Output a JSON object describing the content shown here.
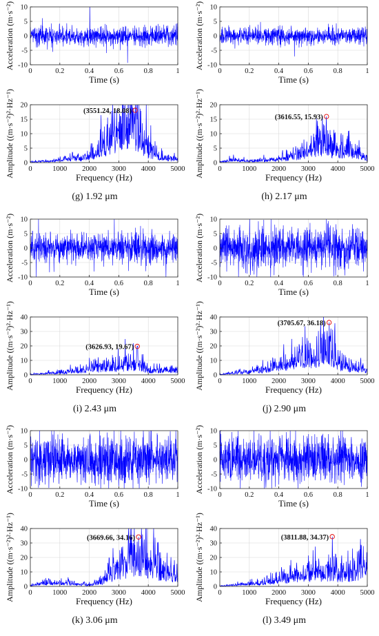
{
  "figure": {
    "time_xlabel": "Time (s)",
    "time_ylabel": "Acceleration (m·s⁻²)",
    "freq_xlabel": "Frequency (Hz)",
    "freq_ylabel": "Amplitude ((m·s⁻²)²·Hz⁻¹)"
  },
  "chart_data": [
    {
      "id": "g",
      "caption": "(g) 1.92 μm",
      "time": {
        "type": "line",
        "xlabel": "Time (s)",
        "ylabel": "Acceleration (m·s⁻²)",
        "xlim": [
          0,
          1
        ],
        "ylim": [
          -10,
          10
        ],
        "xticks": [
          "0",
          "0.2",
          "0.4",
          "0.6",
          "0.8",
          "1"
        ],
        "yticks": [
          "-10",
          "-5",
          "0",
          "5",
          "10"
        ],
        "grid": true,
        "amplitude": 3.5,
        "color": "#0000ff"
      },
      "spectrum": {
        "type": "line",
        "xlabel": "Frequency (Hz)",
        "ylabel": "Amplitude ((m·s⁻²)²·Hz⁻¹)",
        "xlim": [
          0,
          5000
        ],
        "ylim": [
          0,
          20
        ],
        "xticks": [
          "0",
          "1000",
          "2000",
          "3000",
          "4000",
          "5000"
        ],
        "yticks": [
          "0",
          "5",
          "10",
          "15",
          "20"
        ],
        "grid": true,
        "color": "#0000ff",
        "envelope": [
          [
            0,
            0.2
          ],
          [
            800,
            0.5
          ],
          [
            1300,
            1.2
          ],
          [
            1800,
            1.5
          ],
          [
            2200,
            3
          ],
          [
            2600,
            6
          ],
          [
            3000,
            9
          ],
          [
            3300,
            11
          ],
          [
            3500,
            12
          ],
          [
            3700,
            9
          ],
          [
            4000,
            4
          ],
          [
            4500,
            1.5
          ],
          [
            5000,
            1
          ]
        ],
        "peak": {
          "x": 3551.24,
          "y": 18.08,
          "label": "(3551.24, 18.08)"
        }
      }
    },
    {
      "id": "h",
      "caption": "(h) 2.17 μm",
      "time": {
        "type": "line",
        "xlabel": "Time (s)",
        "ylabel": "Acceleration (m·s⁻²)",
        "xlim": [
          0,
          1
        ],
        "ylim": [
          -10,
          10
        ],
        "xticks": [
          "0",
          "0.2",
          "0.4",
          "0.6",
          "0.8",
          "1"
        ],
        "yticks": [
          "-10",
          "-5",
          "0",
          "5",
          "10"
        ],
        "grid": true,
        "amplitude": 3.2,
        "color": "#0000ff"
      },
      "spectrum": {
        "type": "line",
        "xlabel": "Frequency (Hz)",
        "ylabel": "Amplitude ((m·s⁻²)²·Hz⁻¹)",
        "xlim": [
          0,
          5000
        ],
        "ylim": [
          0,
          20
        ],
        "xticks": [
          "0",
          "1000",
          "2000",
          "3000",
          "4000",
          "5000"
        ],
        "yticks": [
          "0",
          "5",
          "10",
          "15",
          "20"
        ],
        "grid": true,
        "color": "#0000ff",
        "envelope": [
          [
            0,
            0.2
          ],
          [
            500,
            1
          ],
          [
            1000,
            0.4
          ],
          [
            2000,
            1
          ],
          [
            2500,
            2
          ],
          [
            3000,
            3.5
          ],
          [
            3400,
            6
          ],
          [
            3600,
            6
          ],
          [
            3900,
            4
          ],
          [
            4300,
            4
          ],
          [
            4600,
            3
          ],
          [
            5000,
            1
          ]
        ],
        "peak": {
          "x": 3616.55,
          "y": 15.93,
          "label": "(3616.55, 15.93)"
        }
      }
    },
    {
      "id": "i",
      "caption": "(i) 2.43 μm",
      "time": {
        "type": "line",
        "xlabel": "Time (s)",
        "ylabel": "Acceleration (m·s⁻²)",
        "xlim": [
          0,
          1
        ],
        "ylim": [
          -10,
          10
        ],
        "xticks": [
          "0",
          "0.2",
          "0.4",
          "0.6",
          "0.8",
          "1"
        ],
        "yticks": [
          "-10",
          "-5",
          "0",
          "5",
          "10"
        ],
        "grid": true,
        "amplitude": 5.5,
        "color": "#0000ff"
      },
      "spectrum": {
        "type": "line",
        "xlabel": "Frequency (Hz)",
        "ylabel": "Amplitude ((m·s⁻²)²·Hz⁻¹)",
        "xlim": [
          0,
          5000
        ],
        "ylim": [
          0,
          40
        ],
        "xticks": [
          "0",
          "1000",
          "2000",
          "3000",
          "4000",
          "5000"
        ],
        "yticks": [
          "0",
          "10",
          "20",
          "30",
          "40"
        ],
        "grid": true,
        "color": "#0000ff",
        "envelope": [
          [
            0,
            0.3
          ],
          [
            1000,
            1.5
          ],
          [
            1500,
            2.5
          ],
          [
            2000,
            3.5
          ],
          [
            2500,
            5
          ],
          [
            3000,
            6
          ],
          [
            3400,
            7
          ],
          [
            3700,
            8
          ],
          [
            4000,
            3
          ],
          [
            4500,
            3
          ],
          [
            5000,
            3
          ]
        ],
        "peak": {
          "x": 3626.93,
          "y": 19.67,
          "label": "(3626.93, 19.67)"
        }
      }
    },
    {
      "id": "j",
      "caption": "(j) 2.90 μm",
      "time": {
        "type": "line",
        "xlabel": "Time (s)",
        "ylabel": "Acceleration (m·s⁻²)",
        "xlim": [
          0,
          1
        ],
        "ylim": [
          -10,
          10
        ],
        "xticks": [
          "0",
          "0.2",
          "0.4",
          "0.6",
          "0.8",
          "1"
        ],
        "yticks": [
          "-10",
          "-5",
          "0",
          "5",
          "10"
        ],
        "grid": true,
        "amplitude": 8,
        "color": "#0000ff"
      },
      "spectrum": {
        "type": "line",
        "xlabel": "Frequency (Hz)",
        "ylabel": "Amplitude ((m·s⁻²)²·Hz⁻¹)",
        "xlim": [
          0,
          5000
        ],
        "ylim": [
          0,
          40
        ],
        "xticks": [
          "0",
          "1000",
          "2000",
          "3000",
          "4000",
          "5000"
        ],
        "yticks": [
          "0",
          "10",
          "20",
          "30",
          "40"
        ],
        "grid": true,
        "color": "#0000ff",
        "envelope": [
          [
            0,
            0.3
          ],
          [
            1000,
            2
          ],
          [
            1500,
            3
          ],
          [
            2000,
            6
          ],
          [
            2500,
            9
          ],
          [
            3000,
            12
          ],
          [
            3400,
            13
          ],
          [
            3700,
            18
          ],
          [
            4000,
            8
          ],
          [
            4500,
            4
          ],
          [
            5000,
            3
          ]
        ],
        "peak": {
          "x": 3705.67,
          "y": 36.18,
          "label": "(3705.67, 36.18)"
        }
      }
    },
    {
      "id": "k",
      "caption": "(k) 3.06 μm",
      "time": {
        "type": "line",
        "xlabel": "Time (s)",
        "ylabel": "Acceleration (m·s⁻²)",
        "xlim": [
          0,
          1
        ],
        "ylim": [
          -10,
          10
        ],
        "xticks": [
          "0",
          "0.2",
          "0.4",
          "0.6",
          "0.8",
          "1"
        ],
        "yticks": [
          "-10",
          "-5",
          "0",
          "5",
          "10"
        ],
        "grid": true,
        "amplitude": 9,
        "color": "#0000ff"
      },
      "spectrum": {
        "type": "line",
        "xlabel": "Frequency (Hz)",
        "ylabel": "Amplitude ((m·s⁻²)²·Hz⁻¹)",
        "xlim": [
          0,
          5000
        ],
        "ylim": [
          0,
          40
        ],
        "xticks": [
          "0",
          "1000",
          "2000",
          "3000",
          "4000",
          "5000"
        ],
        "yticks": [
          "0",
          "10",
          "20",
          "30",
          "40"
        ],
        "grid": true,
        "color": "#0000ff",
        "envelope": [
          [
            0,
            0.5
          ],
          [
            500,
            2
          ],
          [
            1000,
            2.5
          ],
          [
            1500,
            1.5
          ],
          [
            2000,
            1
          ],
          [
            2500,
            4
          ],
          [
            3000,
            12
          ],
          [
            3300,
            16
          ],
          [
            3600,
            18
          ],
          [
            4000,
            15
          ],
          [
            4500,
            10
          ],
          [
            5000,
            6
          ]
        ],
        "peak": {
          "x": 3669.66,
          "y": 34.16,
          "label": "(3669.66, 34.16)"
        }
      }
    },
    {
      "id": "l",
      "caption": "(l) 3.49 μm",
      "time": {
        "type": "line",
        "xlabel": "Time (s)",
        "ylabel": "Acceleration (m·s⁻²)",
        "xlim": [
          0,
          1
        ],
        "ylim": [
          -10,
          10
        ],
        "xticks": [
          "0",
          "0.2",
          "0.4",
          "0.6",
          "0.8",
          "1"
        ],
        "yticks": [
          "-10",
          "-5",
          "0",
          "5",
          "10"
        ],
        "grid": true,
        "amplitude": 8.5,
        "color": "#0000ff"
      },
      "spectrum": {
        "type": "line",
        "xlabel": "Frequency (Hz)",
        "ylabel": "Amplitude ((m·s⁻²)²·Hz⁻¹)",
        "xlim": [
          0,
          5000
        ],
        "ylim": [
          0,
          40
        ],
        "xticks": [
          "0",
          "1000",
          "2000",
          "3000",
          "4000",
          "5000"
        ],
        "yticks": [
          "0",
          "10",
          "20",
          "30",
          "40"
        ],
        "grid": true,
        "color": "#0000ff",
        "envelope": [
          [
            0,
            0.3
          ],
          [
            1000,
            1.5
          ],
          [
            1500,
            2
          ],
          [
            2000,
            5
          ],
          [
            2500,
            7
          ],
          [
            3000,
            8
          ],
          [
            3500,
            9
          ],
          [
            3800,
            10
          ],
          [
            4000,
            7
          ],
          [
            4500,
            9
          ],
          [
            5000,
            13
          ]
        ],
        "peak": {
          "x": 3811.88,
          "y": 34.37,
          "label": "(3811.88, 34.37)"
        }
      }
    }
  ]
}
